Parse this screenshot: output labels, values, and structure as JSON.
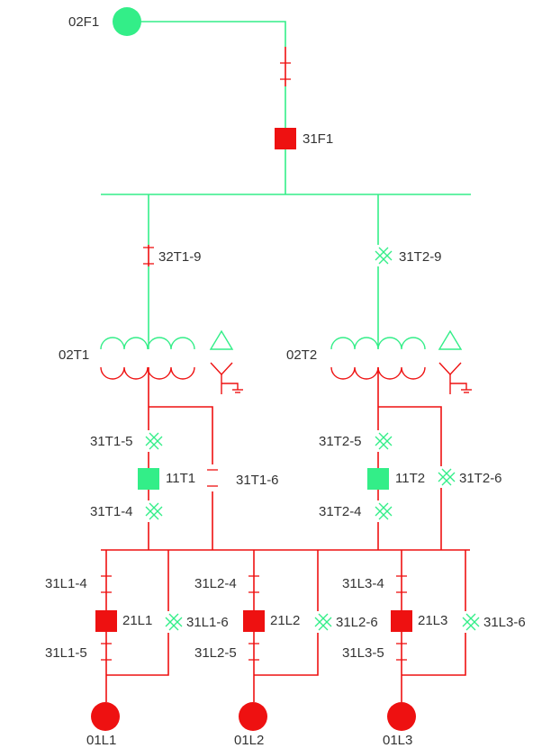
{
  "colors": {
    "energized": "#33ee88",
    "lv": "#ee1111",
    "text": "#333333"
  },
  "labels": {
    "feeder_in": "02F1",
    "breaker_in": "31F1",
    "disc_t1_hv": "32T1-9",
    "disc_t2_hv": "31T2-9",
    "trafo_1": "02T1",
    "trafo_2": "02T2",
    "disc_t1_5": "31T1-5",
    "disc_t1_4": "31T1-4",
    "disc_t1_6": "31T1-6",
    "breaker_t1": "11T1",
    "disc_t2_5": "31T2-5",
    "disc_t2_4": "31T2-4",
    "disc_t2_6": "31T2-6",
    "breaker_t2": "11T2",
    "disc_l1_4": "31L1-4",
    "disc_l1_5": "31L1-5",
    "disc_l1_6": "31L1-6",
    "breaker_l1": "21L1",
    "disc_l2_4": "31L2-4",
    "disc_l2_5": "31L2-5",
    "disc_l2_6": "31L2-6",
    "breaker_l2": "21L2",
    "disc_l3_4": "31L3-4",
    "disc_l3_5": "31L3-5",
    "disc_l3_6": "31L3-6",
    "breaker_l3": "21L3",
    "load_1": "01L1",
    "load_2": "01L2",
    "load_3": "01L3"
  }
}
